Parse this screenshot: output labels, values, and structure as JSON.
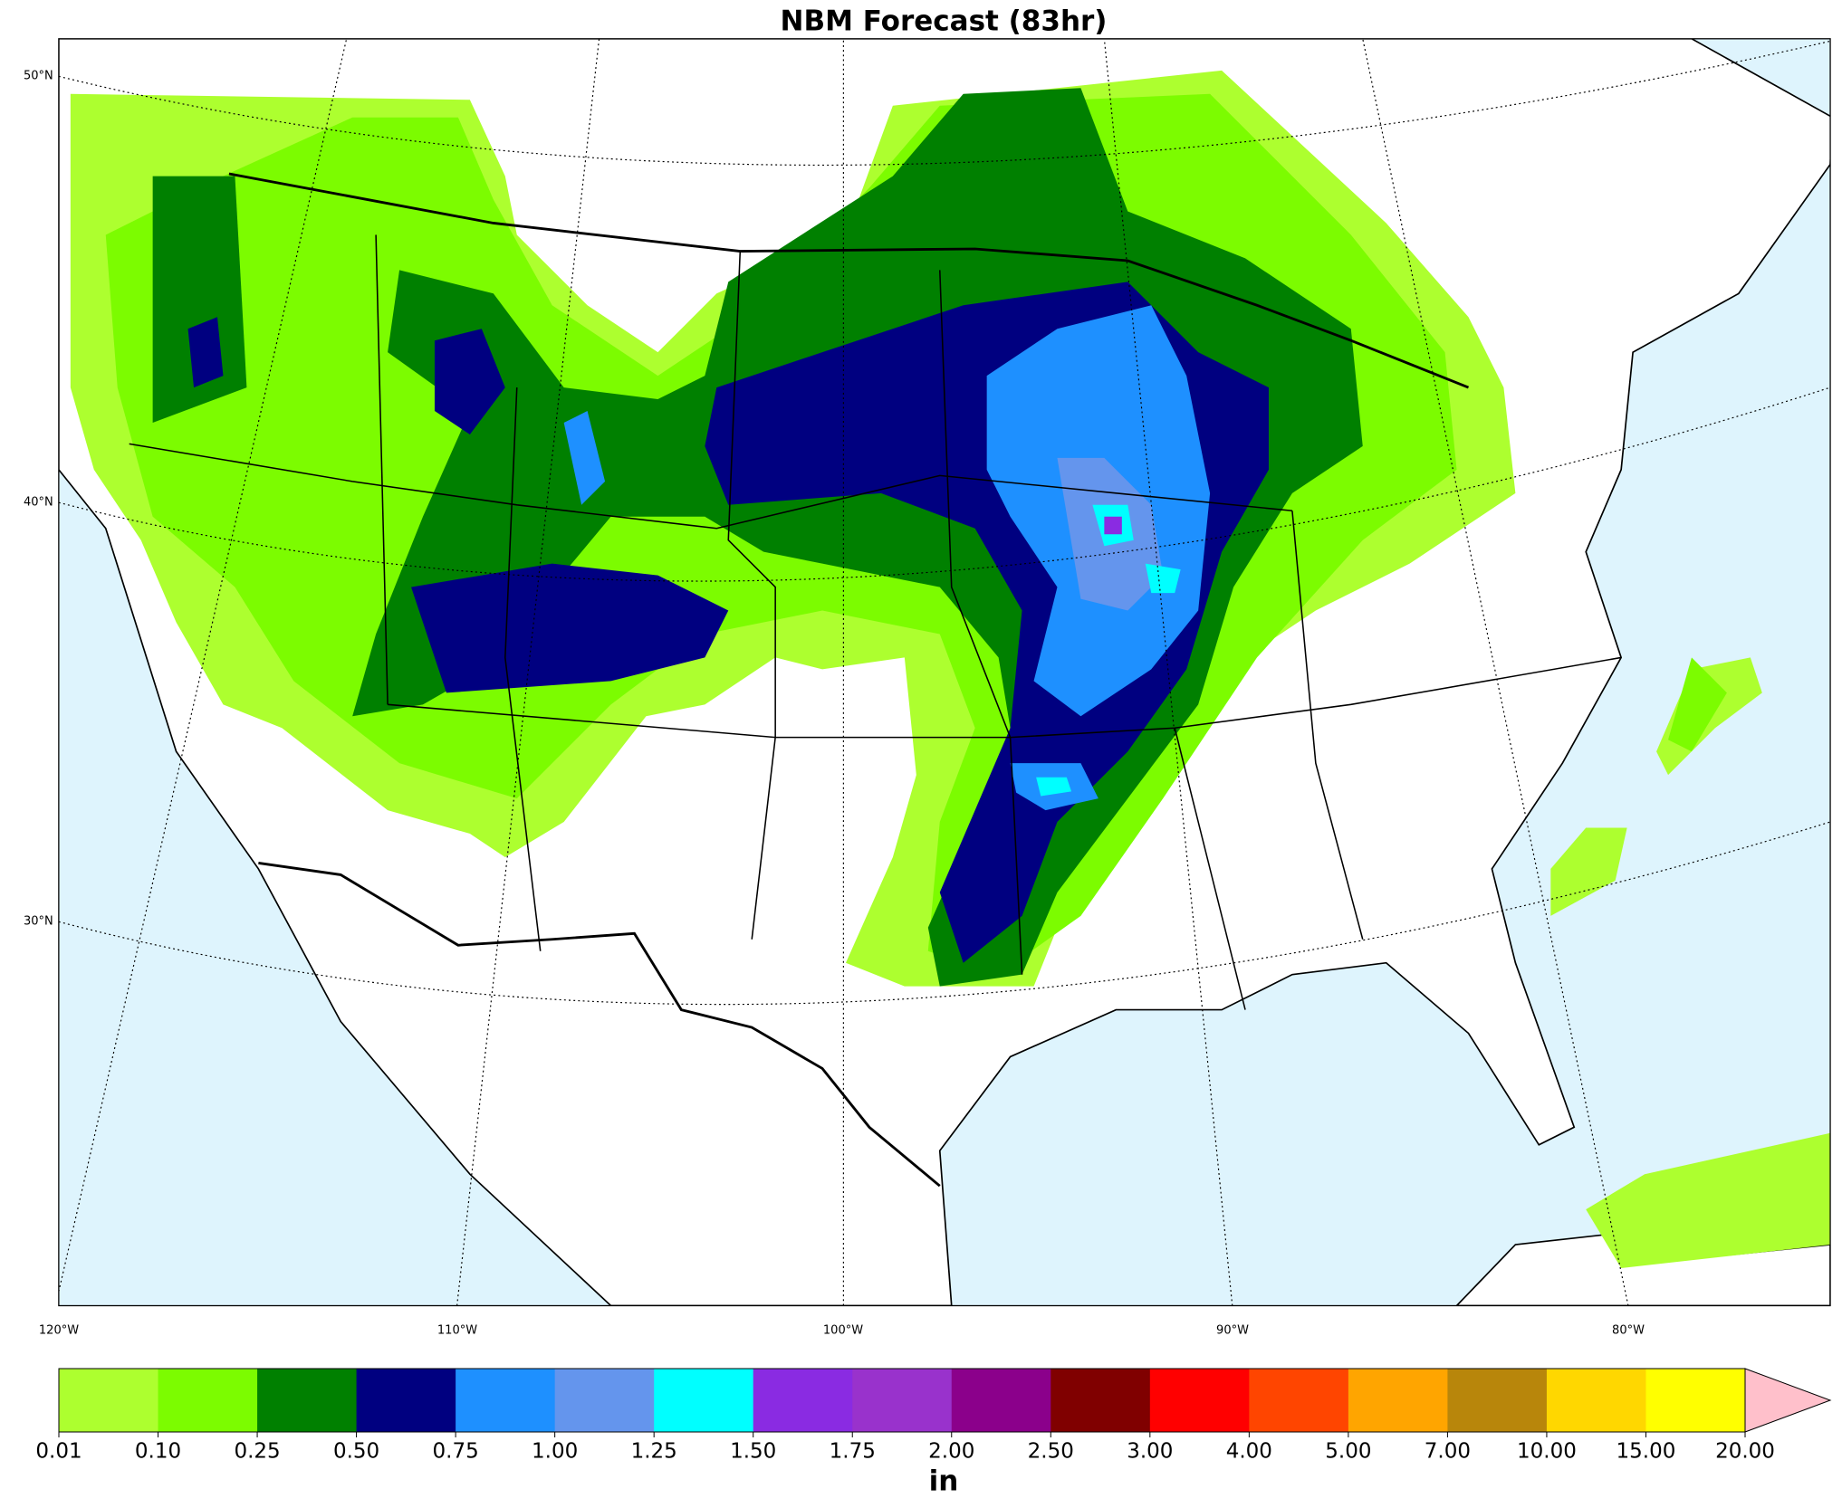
{
  "title": "NBM Forecast (83hr)",
  "map": {
    "lat_labels": [
      "50°N",
      "40°N",
      "30°N"
    ],
    "lon_labels": [
      "120°W",
      "110°W",
      "100°W",
      "90°W",
      "80°W"
    ]
  },
  "colorbar": {
    "ticks": [
      {
        "value": 0.01,
        "label": "0.01"
      },
      {
        "value": 0.1,
        "label": "0.10"
      },
      {
        "value": 0.25,
        "label": "0.25"
      },
      {
        "value": 0.5,
        "label": "0.50"
      },
      {
        "value": 0.75,
        "label": "0.75"
      },
      {
        "value": 1,
        "label": "1.00"
      },
      {
        "value": 1.25,
        "label": "1.25"
      },
      {
        "value": 1.5,
        "label": "1.50"
      },
      {
        "value": 1.75,
        "label": "1.75"
      },
      {
        "value": 2,
        "label": "2.00"
      },
      {
        "value": 2.5,
        "label": "2.50"
      },
      {
        "value": 3,
        "label": "3.00"
      },
      {
        "value": 4,
        "label": "4.00"
      },
      {
        "value": 5,
        "label": "5.00"
      },
      {
        "value": 7,
        "label": "7.00"
      },
      {
        "value": 10,
        "label": "10.00"
      },
      {
        "value": 15,
        "label": "15.00"
      },
      {
        "value": 20,
        "label": "20.00"
      }
    ],
    "colors": [
      "#adff2f",
      "#7cfc00",
      "#008000",
      "#000080",
      "#1e90ff",
      "#6495ed",
      "#00ffff",
      "#8a2be2",
      "#9932cc",
      "#8b008b",
      "#800000",
      "#ff0000",
      "#ff4500",
      "#ffa500",
      "#b8860b",
      "#ffd700",
      "#ffff00"
    ],
    "extend_color": "#ffc0cb",
    "unit": "in"
  }
}
